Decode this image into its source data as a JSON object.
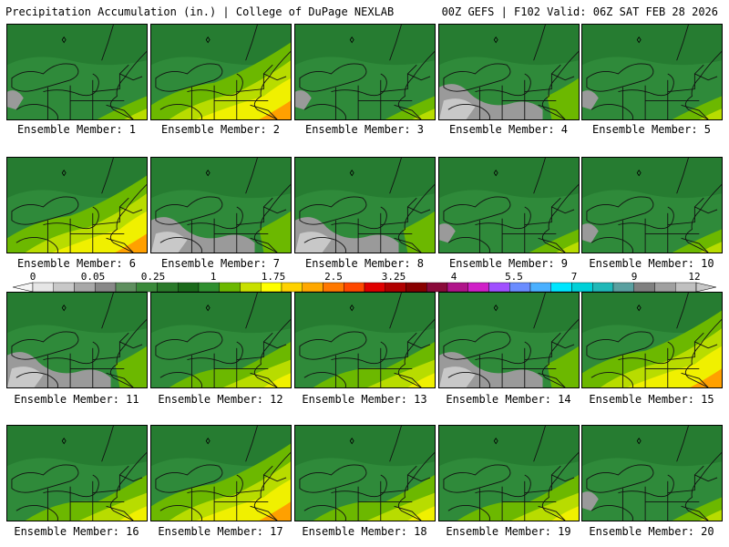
{
  "header": {
    "left": "Precipitation Accumulation (in.) | College of DuPage NEXLAB",
    "right": "00Z GEFS | F102 Valid: 06Z SAT FEB 28 2026"
  },
  "caption_prefix": "Ensemble Member: ",
  "members": [
    {
      "label": "Ensemble Member: 1",
      "style": "light"
    },
    {
      "label": "Ensemble Member: 2",
      "style": "heavy"
    },
    {
      "label": "Ensemble Member: 3",
      "style": "light"
    },
    {
      "label": "Ensemble Member: 4",
      "style": "grey"
    },
    {
      "label": "Ensemble Member: 5",
      "style": "light"
    },
    {
      "label": "Ensemble Member: 6",
      "style": "heavy"
    },
    {
      "label": "Ensemble Member: 7",
      "style": "grey"
    },
    {
      "label": "Ensemble Member: 8",
      "style": "grey"
    },
    {
      "label": "Ensemble Member: 9",
      "style": "light"
    },
    {
      "label": "Ensemble Member: 10",
      "style": "light"
    },
    {
      "label": "Ensemble Member: 11",
      "style": "grey"
    },
    {
      "label": "Ensemble Member: 12",
      "style": "moderate"
    },
    {
      "label": "Ensemble Member: 13",
      "style": "moderate"
    },
    {
      "label": "Ensemble Member: 14",
      "style": "grey"
    },
    {
      "label": "Ensemble Member: 15",
      "style": "heavy"
    },
    {
      "label": "Ensemble Member: 16",
      "style": "moderate"
    },
    {
      "label": "Ensemble Member: 17",
      "style": "heavy"
    },
    {
      "label": "Ensemble Member: 18",
      "style": "moderate"
    },
    {
      "label": "Ensemble Member: 19",
      "style": "moderate"
    },
    {
      "label": "Ensemble Member: 20",
      "style": "light"
    }
  ],
  "colorbar": {
    "labels": [
      "0",
      "0.05",
      "0.25",
      "1",
      "1.75",
      "2.5",
      "3.25",
      "4",
      "5.5",
      "7",
      "9",
      "12"
    ],
    "colors": [
      "#e6e6e6",
      "#c8c8c8",
      "#a8a8a8",
      "#888888",
      "#5e8f5e",
      "#3a8a3a",
      "#2a7a2a",
      "#1a6a1a",
      "#2f8f2f",
      "#6cb800",
      "#c8e000",
      "#ffff00",
      "#ffd200",
      "#ffa800",
      "#ff7800",
      "#ff4800",
      "#e00000",
      "#b00000",
      "#880000",
      "#8a0a3a",
      "#b0148a",
      "#d020c8",
      "#a050ff",
      "#6a8cff",
      "#4ab0ff",
      "#00e6ff",
      "#00d0d8",
      "#20b8b8",
      "#5aa0a0",
      "#808080",
      "#a0a0a0",
      "#c0c0c0"
    ]
  },
  "palette": {
    "base": "#2f8a3a",
    "dark": "#1e6e28",
    "lightgreen": "#6cb800",
    "yellowgreen": "#b8dc00",
    "yellow": "#f0f000",
    "orange": "#ffa000",
    "red": "#e01010",
    "grey": "#9a9a9a",
    "lightgrey": "#c8c8c8"
  }
}
